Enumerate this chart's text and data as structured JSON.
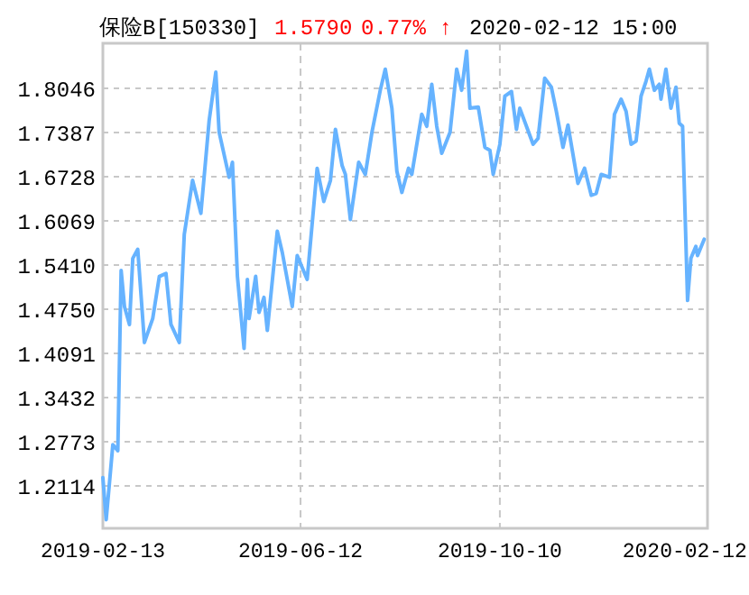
{
  "chart_data": {
    "type": "line",
    "title": "保险B[150330]",
    "annotations": [
      "1.5790",
      "0.77% ↑",
      "2020-02-12 15:00"
    ],
    "xlim": [
      "2019-02-13",
      "2020-02-12"
    ],
    "xticks": [
      "2019-02-13",
      "2019-06-12",
      "2019-10-10",
      "2020-02-12"
    ],
    "ylim": [
      1.148,
      1.872
    ],
    "yticks": [
      1.2114,
      1.2773,
      1.3432,
      1.4091,
      {
        "value": 1.475,
        "label": "1.4750"
      },
      {
        "value": 1.541,
        "label": "1.5410"
      },
      1.6069,
      1.6728,
      1.7387,
      1.8046
    ],
    "grid": true,
    "series": [
      {
        "color": "#66b3ff",
        "x": [
          "2019-02-13",
          "2019-02-15",
          "2019-02-19",
          "2019-02-22",
          "2019-02-24",
          "2019-02-26",
          "2019-03-01",
          "2019-03-03",
          "2019-03-06",
          "2019-03-10",
          "2019-03-15",
          "2019-03-19",
          "2019-03-23",
          "2019-03-26",
          "2019-03-31",
          "2019-04-03",
          "2019-04-08",
          "2019-04-13",
          "2019-04-18",
          "2019-04-22",
          "2019-04-24",
          "2019-04-30",
          "2019-05-02",
          "2019-05-05",
          "2019-05-09",
          "2019-05-11",
          "2019-05-12",
          "2019-05-16",
          "2019-05-18",
          "2019-05-21",
          "2019-05-23",
          "2019-05-29",
          "2019-06-01",
          "2019-06-07",
          "2019-06-10",
          "2019-06-16",
          "2019-06-22",
          "2019-06-26",
          "2019-06-30",
          "2019-07-03",
          "2019-07-07",
          "2019-07-09",
          "2019-07-12",
          "2019-07-17",
          "2019-07-21",
          "2019-07-25",
          "2019-07-30",
          "2019-08-02",
          "2019-08-06",
          "2019-08-09",
          "2019-08-12",
          "2019-08-16",
          "2019-08-18",
          "2019-08-24",
          "2019-08-27",
          "2019-08-30",
          "2019-09-02",
          "2019-09-05",
          "2019-09-10",
          "2019-09-14",
          "2019-09-17",
          "2019-09-20",
          "2019-09-22",
          "2019-09-27",
          "2019-10-01",
          "2019-10-04",
          "2019-10-06",
          "2019-10-10",
          "2019-10-13",
          "2019-10-17",
          "2019-10-20",
          "2019-10-22",
          "2019-10-26",
          "2019-10-30",
          "2019-11-02",
          "2019-11-06",
          "2019-11-10",
          "2019-11-13",
          "2019-11-17",
          "2019-11-20",
          "2019-11-26",
          "2019-11-30",
          "2019-12-04",
          "2019-12-07",
          "2019-12-10",
          "2019-12-15",
          "2019-12-18",
          "2019-12-22",
          "2019-12-25",
          "2019-12-28",
          "2019-12-31",
          "2020-01-03",
          "2020-01-06",
          "2020-01-08",
          "2020-01-11",
          "2020-01-14",
          "2020-01-15",
          "2020-01-18",
          "2020-01-21",
          "2020-01-24",
          "2020-01-26",
          "2020-01-28",
          "2020-01-31",
          "2020-02-02",
          "2020-02-05",
          "2020-02-06",
          "2020-02-10"
        ],
        "values": [
          1.2236,
          1.1609,
          1.2728,
          1.2639,
          1.5329,
          1.4791,
          1.4522,
          1.5509,
          1.5644,
          1.4253,
          1.4611,
          1.524,
          1.5283,
          1.4522,
          1.4253,
          1.5867,
          1.6674,
          1.6182,
          1.757,
          1.8288,
          1.7392,
          1.672,
          1.6943,
          1.524,
          1.4164,
          1.5195,
          1.4611,
          1.524,
          1.4702,
          1.4926,
          1.4433,
          1.5913,
          1.5598,
          1.4791,
          1.5552,
          1.5195,
          1.6854,
          1.6359,
          1.6674,
          1.7435,
          1.6897,
          1.6763,
          1.609,
          1.6943,
          1.6763,
          1.7392,
          1.8019,
          1.8334,
          1.775,
          1.6809,
          1.6494,
          1.6854,
          1.6763,
          1.7661,
          1.7481,
          1.8108,
          1.7481,
          1.7078,
          1.7392,
          1.8334,
          1.8019,
          1.8603,
          1.775,
          1.7769,
          1.7166,
          1.7123,
          1.6763,
          1.7212,
          1.793,
          1.8,
          1.7435,
          1.775,
          1.7481,
          1.7212,
          1.7301,
          1.8199,
          1.8065,
          1.7704,
          1.7166,
          1.75,
          1.6628,
          1.6854,
          1.6451,
          1.6478,
          1.6763,
          1.672,
          1.7661,
          1.7885,
          1.7704,
          1.7212,
          1.7258,
          1.793,
          1.8154,
          1.8334,
          1.8019,
          1.8108,
          1.7885,
          1.8334,
          1.775,
          1.8065,
          1.7527,
          1.7481,
          1.488,
          1.5509,
          1.5687,
          1.5552,
          1.5794
        ]
      }
    ]
  }
}
